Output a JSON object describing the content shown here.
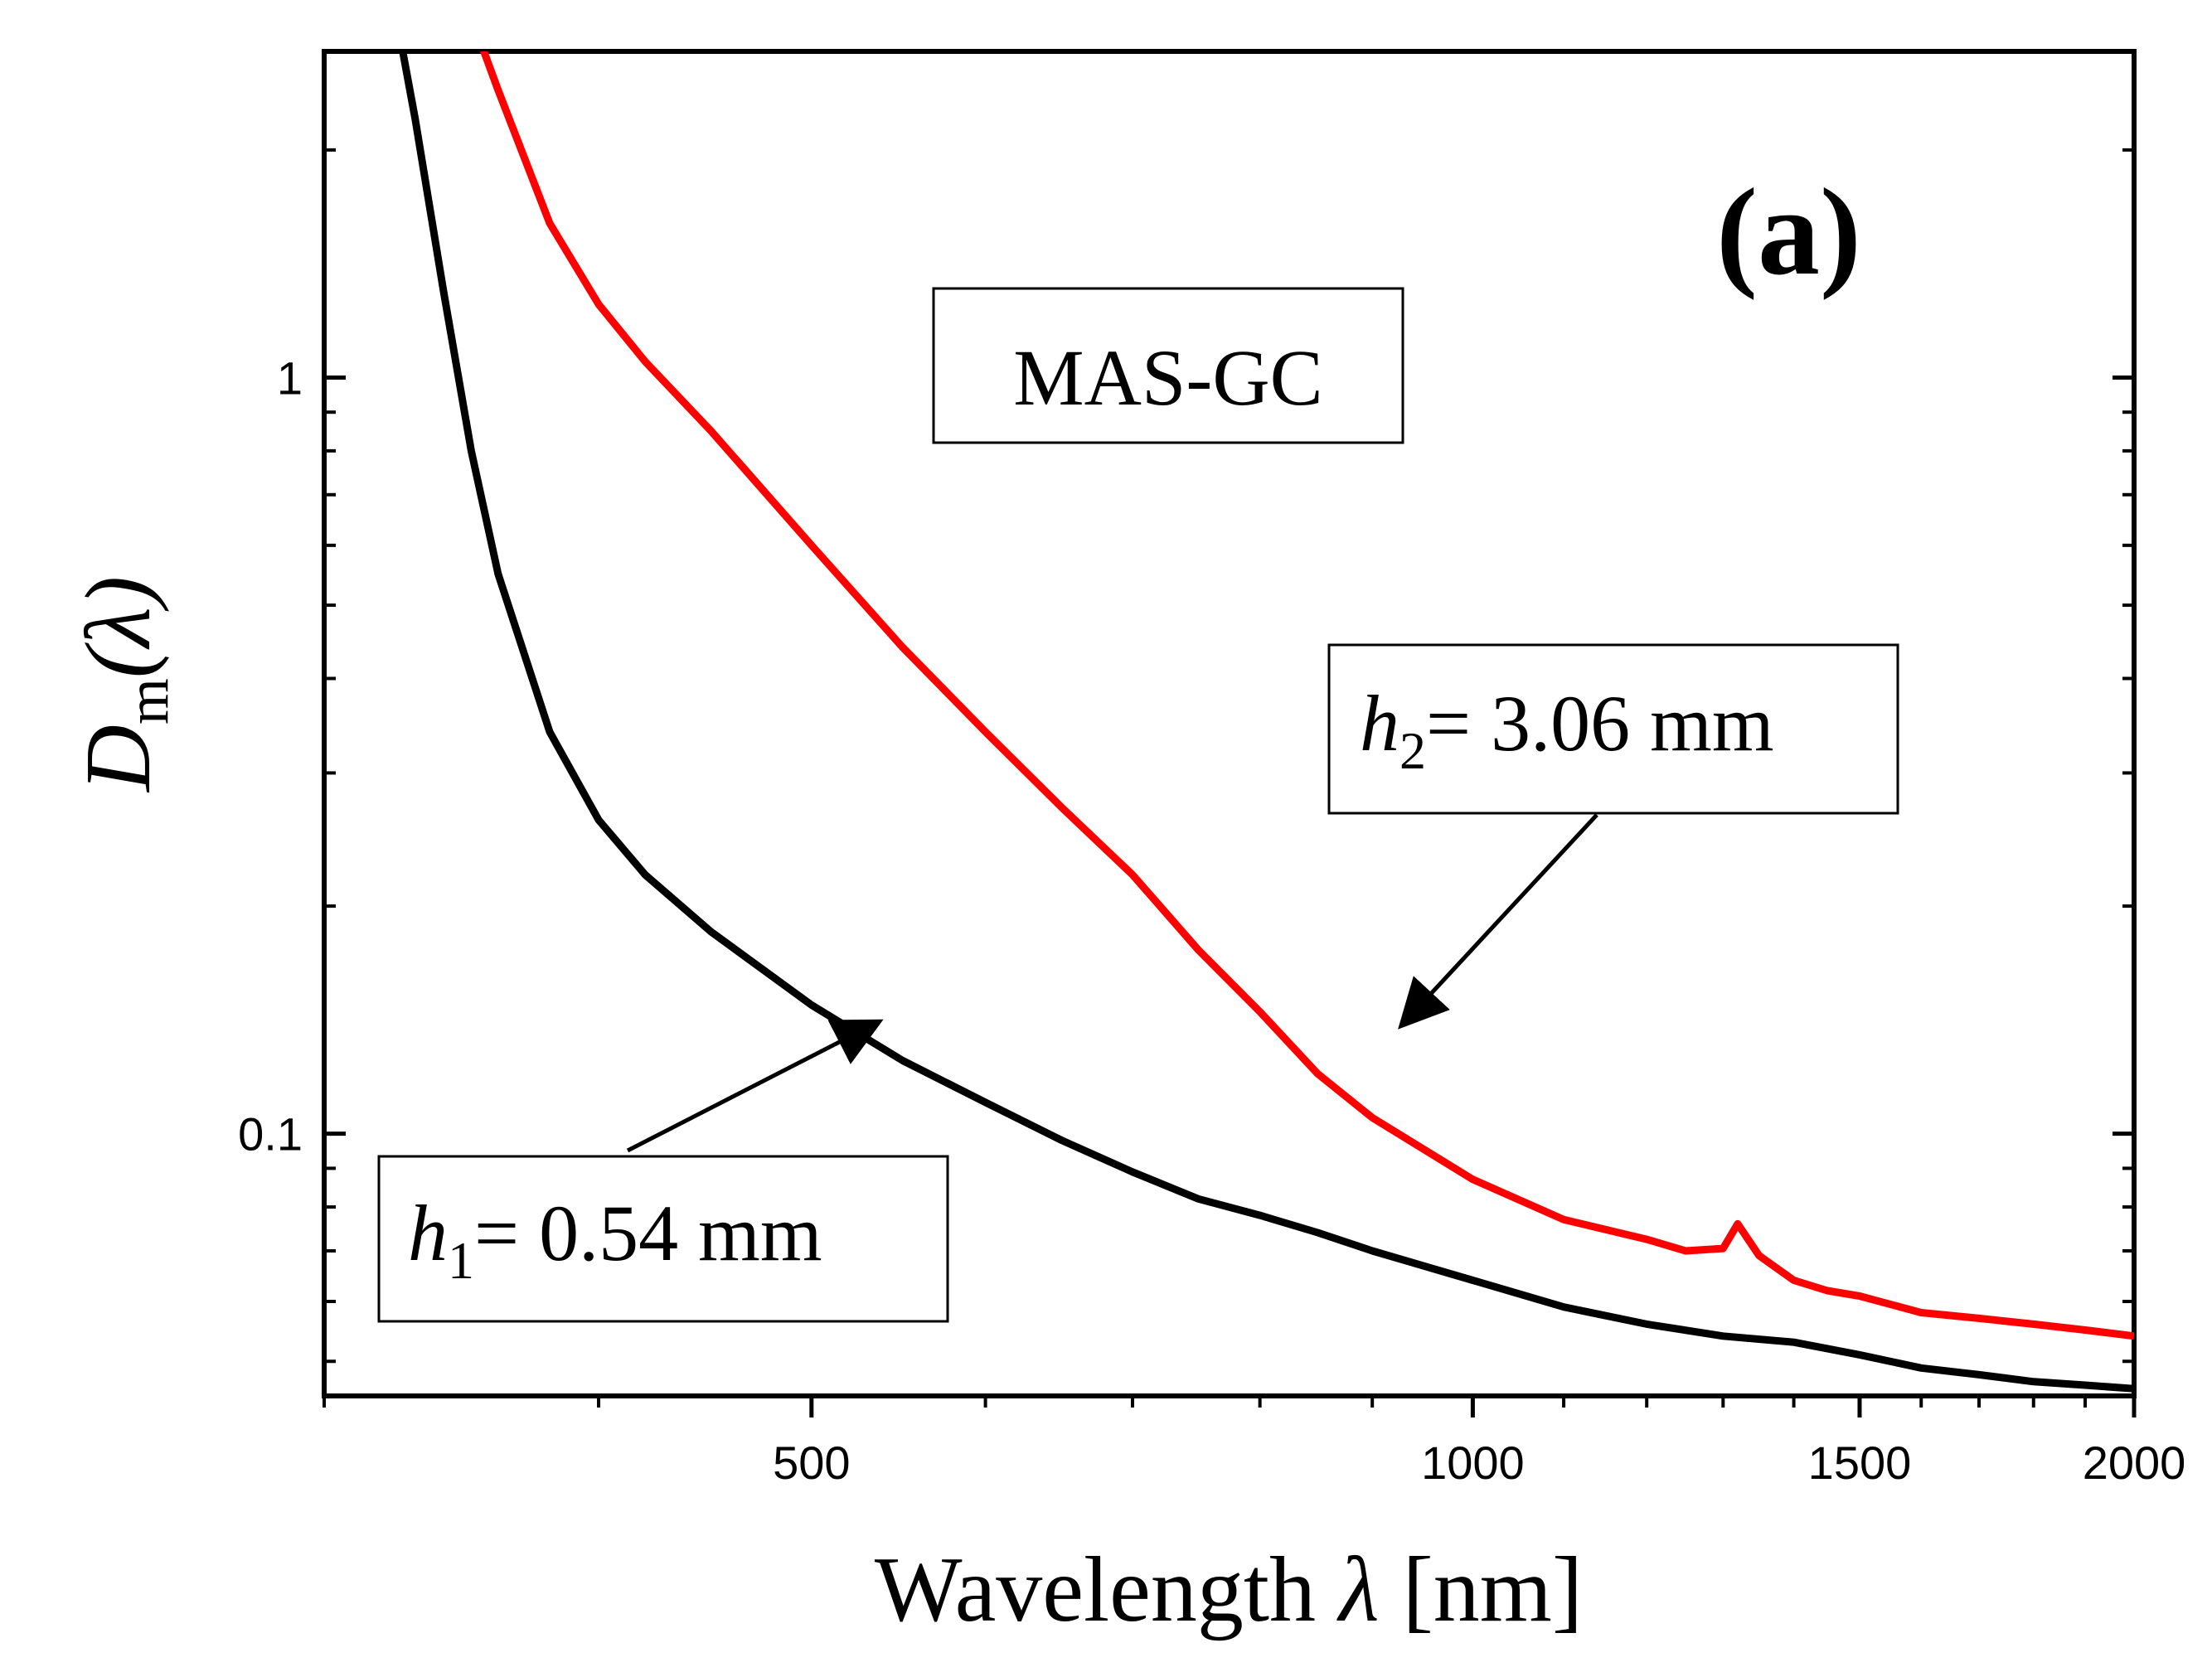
{
  "chart_data": {
    "type": "line",
    "title": "",
    "panel_label": "(a)",
    "sample_label": "MAS-GC",
    "xlabel": {
      "text": "Wavelength ",
      "symbol": "λ",
      "unit": " [nm]"
    },
    "ylabel": {
      "main": "D",
      "sub": "m",
      "arg": "(λ)"
    },
    "xscale": "log",
    "yscale": "log",
    "xlim": [
      300,
      2000
    ],
    "ylim": [
      0.045,
      2.7
    ],
    "x_ticks": [
      500,
      1000,
      1500,
      2000
    ],
    "x_tick_labels": [
      "500",
      "1000",
      "1500",
      "2000"
    ],
    "y_ticks": [
      0.1,
      1
    ],
    "y_tick_labels": [
      "0.1",
      "1"
    ],
    "grid": false,
    "colors": {
      "h1": "#000000",
      "h2": "#ff0000",
      "axis": "#000000"
    },
    "series": [
      {
        "name": "h1",
        "label": {
          "var": "h",
          "sub": "1",
          "value": "= 0.54 mm"
        },
        "color": "#000000",
        "x": [
          325,
          330,
          340,
          350,
          360,
          380,
          400,
          420,
          450,
          500,
          550,
          600,
          650,
          700,
          750,
          800,
          850,
          900,
          1000,
          1100,
          1200,
          1300,
          1400,
          1500,
          1600,
          1700,
          1800,
          1900,
          2000
        ],
        "y": [
          2.8,
          2.2,
          1.3,
          0.8,
          0.55,
          0.34,
          0.26,
          0.22,
          0.185,
          0.148,
          0.125,
          0.11,
          0.098,
          0.089,
          0.082,
          0.078,
          0.074,
          0.07,
          0.064,
          0.059,
          0.056,
          0.054,
          0.053,
          0.051,
          0.049,
          0.048,
          0.047,
          0.0465,
          0.046
        ]
      },
      {
        "name": "h2",
        "label": {
          "var": "h",
          "sub": "2",
          "value": "= 3.06 mm"
        },
        "color": "#ff0000",
        "x": [
          350,
          360,
          380,
          400,
          420,
          450,
          500,
          550,
          600,
          650,
          700,
          750,
          800,
          850,
          900,
          1000,
          1100,
          1200,
          1250,
          1300,
          1320,
          1350,
          1400,
          1450,
          1500,
          1600,
          1700,
          1800,
          1900,
          2000
        ],
        "y": [
          3.0,
          2.4,
          1.6,
          1.25,
          1.05,
          0.85,
          0.6,
          0.44,
          0.34,
          0.27,
          0.22,
          0.175,
          0.145,
          0.12,
          0.105,
          0.087,
          0.077,
          0.0725,
          0.07,
          0.0705,
          0.076,
          0.069,
          0.064,
          0.062,
          0.061,
          0.058,
          0.057,
          0.056,
          0.055,
          0.054
        ]
      }
    ],
    "annotations": [
      {
        "series": "h1",
        "label_position": "lower-left",
        "points_to": [
          535,
          0.14
        ]
      },
      {
        "series": "h2",
        "label_position": "center-right",
        "points_to": [
          930,
          0.14
        ]
      }
    ]
  }
}
